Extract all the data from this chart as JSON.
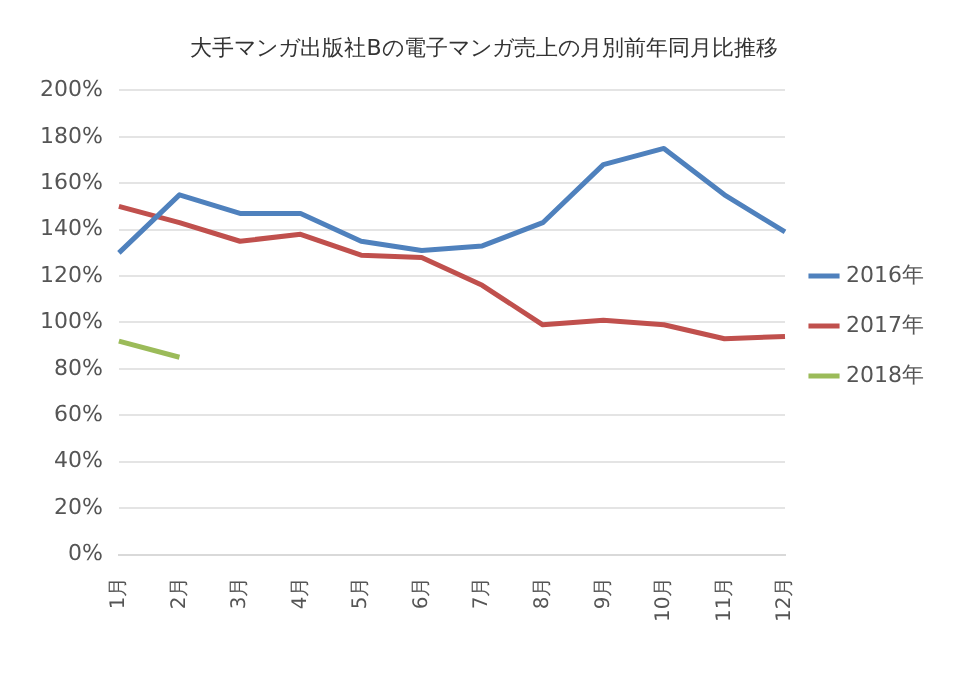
{
  "chart_data": {
    "type": "line",
    "title": "大手マンガ出版社Bの電子マンガ売上の月別前年同月比推移",
    "categories": [
      "1月",
      "2月",
      "3月",
      "4月",
      "5月",
      "6月",
      "7月",
      "8月",
      "9月",
      "10月",
      "11月",
      "12月"
    ],
    "series": [
      {
        "name": "2016年",
        "color": "#4f81bd",
        "values": [
          130,
          155,
          147,
          147,
          135,
          131,
          133,
          143,
          168,
          175,
          155,
          139
        ]
      },
      {
        "name": "2017年",
        "color": "#c0504d",
        "values": [
          150,
          143,
          135,
          138,
          129,
          128,
          116,
          99,
          101,
          99,
          93,
          94
        ]
      },
      {
        "name": "2018年",
        "color": "#9bbb59",
        "values": [
          92,
          85,
          null,
          null,
          null,
          null,
          null,
          null,
          null,
          null,
          null,
          null
        ]
      }
    ],
    "ylim": [
      0,
      200
    ],
    "yticks": [
      {
        "value": 0,
        "label": "0%"
      },
      {
        "value": 20,
        "label": "20%"
      },
      {
        "value": 40,
        "label": "40%"
      },
      {
        "value": 60,
        "label": "60%"
      },
      {
        "value": 80,
        "label": "80%"
      },
      {
        "value": 100,
        "label": "100%"
      },
      {
        "value": 120,
        "label": "120%"
      },
      {
        "value": 140,
        "label": "140%"
      },
      {
        "value": 160,
        "label": "160%"
      },
      {
        "value": 180,
        "label": "180%"
      },
      {
        "value": 200,
        "label": "200%"
      }
    ],
    "grid": "y",
    "legend": "right",
    "marker": "none",
    "line_style": "solid"
  }
}
